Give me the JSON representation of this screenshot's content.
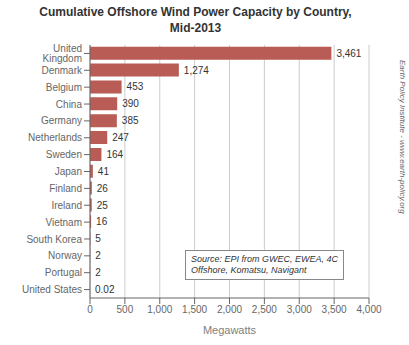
{
  "chart_data": {
    "type": "bar",
    "orientation": "horizontal",
    "title": "Cumulative Offshore Wind Power Capacity by Country,\nMid-2013",
    "xlabel": "Megawatts",
    "categories": [
      "United States",
      "Portugal",
      "Norway",
      "South Korea",
      "Vietnam",
      "Ireland",
      "Finland",
      "Japan",
      "Sweden",
      "Netherlands",
      "Germany",
      "China",
      "Belgium",
      "Denmark",
      "United Kingdom"
    ],
    "values": [
      0.02,
      2,
      2,
      5,
      16,
      25,
      26,
      41,
      164,
      247,
      385,
      390,
      453,
      1274,
      3461
    ],
    "value_labels": [
      "0.02",
      "2",
      "2",
      "5",
      "16",
      "25",
      "26",
      "41",
      "164",
      "247",
      "385",
      "390",
      "453",
      "1,274",
      "3,461"
    ],
    "data_labels": true,
    "color": "#b85c55",
    "xlim": [
      0,
      4000
    ],
    "xticks": [
      0,
      500,
      {
        "value": 1000,
        "label": "1,000"
      },
      {
        "value": 1500,
        "label": "1,500"
      },
      {
        "value": 2000,
        "label": "2,000"
      },
      {
        "value": 2500,
        "label": "2,500"
      },
      {
        "value": 3000,
        "label": "3,000"
      },
      {
        "value": 3500,
        "label": "3,500"
      },
      {
        "value": 4000,
        "label": "4,000"
      }
    ],
    "grid": true,
    "annotations": [
      "Source: EPI from GWEC, EWEA, 4C\nOffshore, Komatsu, Navigant",
      "Earth Policy Institute - www.earth-policy.org"
    ]
  }
}
